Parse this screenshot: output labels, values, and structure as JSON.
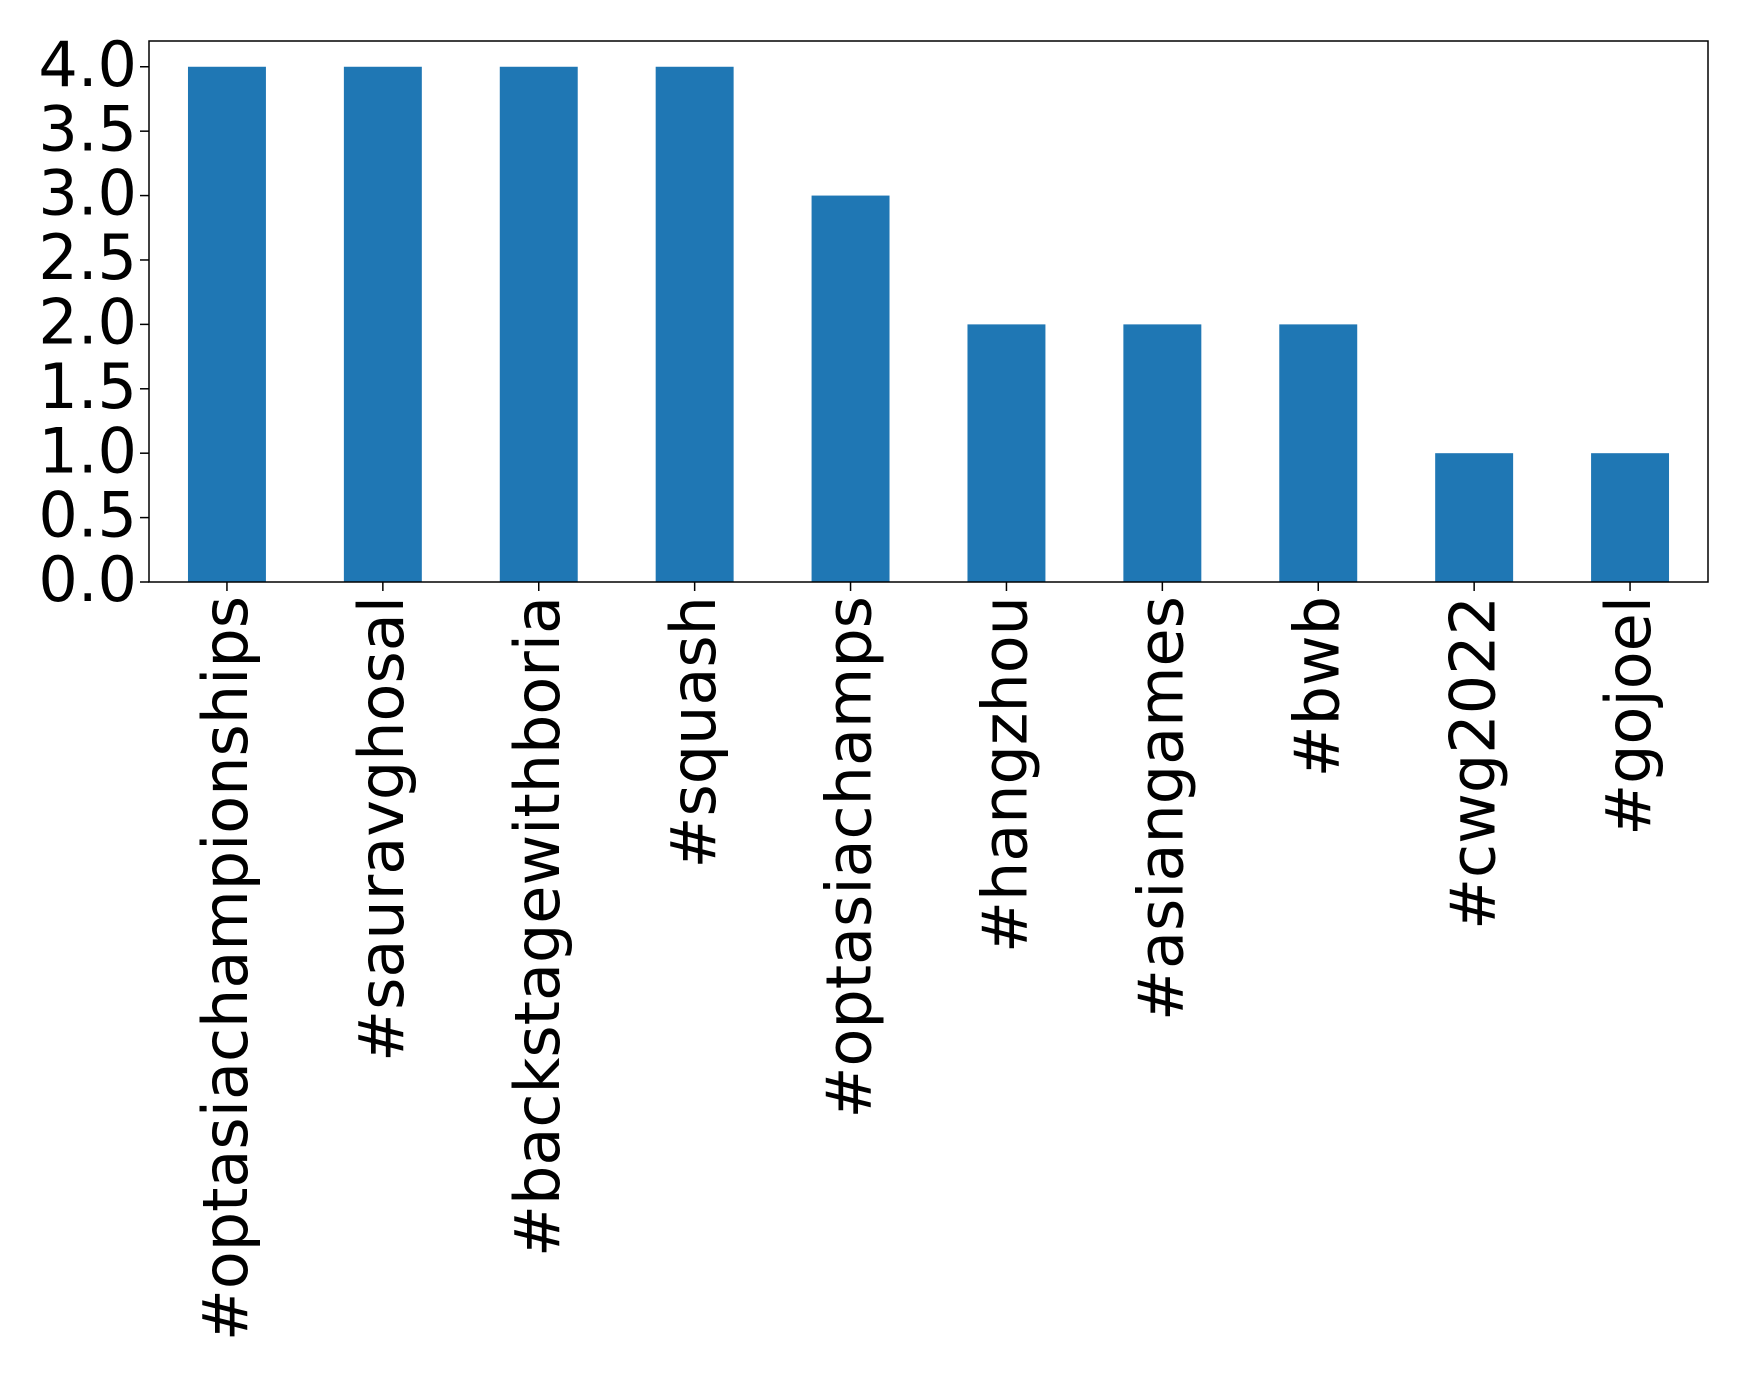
{
  "chart_data": {
    "type": "bar",
    "categories": [
      "#optasiachampionships",
      "#sauravghosal",
      "#backstagewithboria",
      "#squash",
      "#optasiachamps",
      "#hangzhou",
      "#asiangames",
      "#bwb",
      "#cwg2022",
      "#gojoel"
    ],
    "values": [
      4,
      4,
      4,
      4,
      3,
      2,
      2,
      2,
      1,
      1
    ],
    "color": "#1f77b4",
    "ylim": [
      0,
      4.2
    ],
    "yticks": [
      {
        "value": 0,
        "label": "0.0"
      },
      {
        "value": 0.5,
        "label": "0.5"
      },
      {
        "value": 1,
        "label": "1.0"
      },
      {
        "value": 1.5,
        "label": "1.5"
      },
      {
        "value": 2,
        "label": "2.0"
      },
      {
        "value": 2.5,
        "label": "2.5"
      },
      {
        "value": 3,
        "label": "3.0"
      },
      {
        "value": 3.5,
        "label": "3.5"
      },
      {
        "value": 4,
        "label": "4.0"
      }
    ],
    "grid": false
  }
}
